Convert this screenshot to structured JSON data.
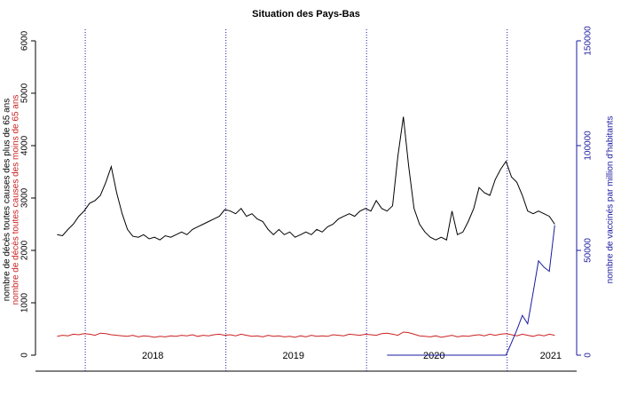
{
  "chart_data": {
    "type": "line",
    "title": "Situation des Pays-Bas",
    "y_label": "nombre de décès toutes causes des plus de 65 ans",
    "y_label_2": "nombre de décès toutes causes des moins de 65 ans",
    "y2_label": "nombre de vaccinés par million d'habitants",
    "x": [
      2017.8,
      2017.838,
      2017.877,
      2017.915,
      2017.954,
      2017.992,
      2018.031,
      2018.069,
      2018.108,
      2018.146,
      2018.185,
      2018.223,
      2018.262,
      2018.3,
      2018.338,
      2018.377,
      2018.415,
      2018.454,
      2018.492,
      2018.531,
      2018.569,
      2018.608,
      2018.646,
      2018.685,
      2018.723,
      2018.762,
      2018.8,
      2018.838,
      2018.877,
      2018.915,
      2018.954,
      2018.992,
      2019.031,
      2019.069,
      2019.108,
      2019.146,
      2019.185,
      2019.223,
      2019.262,
      2019.3,
      2019.338,
      2019.377,
      2019.415,
      2019.454,
      2019.492,
      2019.531,
      2019.569,
      2019.608,
      2019.646,
      2019.685,
      2019.723,
      2019.762,
      2019.8,
      2019.838,
      2019.877,
      2019.915,
      2019.954,
      2019.992,
      2020.031,
      2020.069,
      2020.108,
      2020.146,
      2020.185,
      2020.223,
      2020.262,
      2020.3,
      2020.338,
      2020.377,
      2020.415,
      2020.454,
      2020.492,
      2020.531,
      2020.569,
      2020.608,
      2020.646,
      2020.685,
      2020.723,
      2020.762,
      2020.8,
      2020.838,
      2020.877,
      2020.915,
      2020.954,
      2020.992,
      2021.031,
      2021.069,
      2021.108,
      2021.146,
      2021.185,
      2021.223,
      2021.262,
      2021.3,
      2021.338
    ],
    "series": [
      {
        "name": "plus de 65 ans",
        "color": "#000000",
        "values": [
          2300,
          2280,
          2400,
          2500,
          2650,
          2750,
          2900,
          2950,
          3050,
          3300,
          3600,
          3100,
          2700,
          2400,
          2270,
          2250,
          2300,
          2220,
          2250,
          2200,
          2280,
          2250,
          2300,
          2350,
          2300,
          2400,
          2450,
          2500,
          2550,
          2600,
          2650,
          2780,
          2750,
          2700,
          2800,
          2650,
          2700,
          2600,
          2550,
          2400,
          2300,
          2400,
          2300,
          2350,
          2250,
          2300,
          2350,
          2300,
          2400,
          2350,
          2450,
          2500,
          2600,
          2650,
          2700,
          2650,
          2750,
          2800,
          2750,
          2950,
          2800,
          2750,
          2850,
          3800,
          4550,
          3600,
          2800,
          2500,
          2350,
          2250,
          2200,
          2250,
          2200,
          2750,
          2300,
          2350,
          2550,
          2800,
          3200,
          3100,
          3050,
          3350,
          3550,
          3700,
          3400,
          3300,
          3050,
          2750,
          2700,
          2750,
          2700,
          2650,
          2500
        ]
      },
      {
        "name": "moins de 65 ans",
        "color": "#cc2222",
        "values": [
          360,
          380,
          370,
          400,
          390,
          410,
          400,
          380,
          420,
          410,
          390,
          380,
          370,
          360,
          380,
          350,
          370,
          360,
          340,
          360,
          350,
          370,
          360,
          380,
          370,
          390,
          360,
          380,
          370,
          390,
          400,
          380,
          390,
          370,
          400,
          380,
          360,
          370,
          350,
          380,
          360,
          370,
          350,
          360,
          340,
          370,
          350,
          380,
          360,
          370,
          360,
          390,
          380,
          370,
          400,
          390,
          380,
          400,
          390,
          380,
          410,
          420,
          400,
          380,
          440,
          430,
          400,
          370,
          360,
          350,
          370,
          340,
          360,
          380,
          350,
          370,
          360,
          380,
          390,
          370,
          400,
          380,
          400,
          410,
          390,
          370,
          400,
          380,
          360,
          390,
          370,
          400,
          380
        ]
      },
      {
        "name": "vaccinés",
        "color": "#1a1aa0",
        "axis": "y2",
        "values": [
          null,
          null,
          null,
          null,
          null,
          null,
          null,
          null,
          null,
          null,
          null,
          null,
          null,
          null,
          null,
          null,
          null,
          null,
          null,
          null,
          null,
          null,
          null,
          null,
          null,
          null,
          null,
          null,
          null,
          null,
          null,
          null,
          null,
          null,
          null,
          null,
          null,
          null,
          null,
          null,
          null,
          null,
          null,
          null,
          null,
          null,
          null,
          null,
          null,
          null,
          null,
          null,
          null,
          null,
          null,
          null,
          null,
          null,
          null,
          null,
          null,
          0,
          0,
          0,
          0,
          0,
          0,
          0,
          0,
          0,
          0,
          0,
          0,
          0,
          0,
          0,
          0,
          0,
          0,
          0,
          0,
          0,
          0,
          0,
          6000,
          12000,
          19000,
          15000,
          30000,
          45000,
          42000,
          40000,
          62000
        ]
      }
    ],
    "year_lines": [
      2018,
      2019,
      2020,
      2021
    ],
    "annotations": [
      {
        "text": "2018",
        "x": 2018.48
      },
      {
        "text": "2019",
        "x": 2019.48
      },
      {
        "text": "2020",
        "x": 2020.48
      },
      {
        "text": "2021",
        "x": 2021.31
      }
    ],
    "xlim": [
      2017.646,
      2021.494
    ],
    "ylim": [
      -305,
      6220
    ],
    "yticks": [
      0,
      1000,
      2000,
      3000,
      4000,
      5000,
      6000
    ],
    "y2lim": [
      -7625,
      155500
    ],
    "y2ticks": [
      0,
      50000,
      100000,
      150000
    ]
  }
}
